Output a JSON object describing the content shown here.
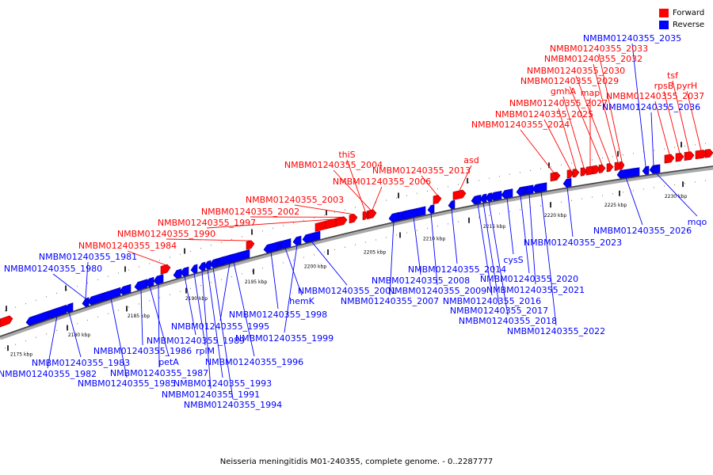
{
  "caption": "Neisseria meningitidis M01-240355, complete genome. - 0..2287777",
  "legend": [
    {
      "label": "Forward",
      "color": "#ff0000"
    },
    {
      "label": "Reverse",
      "color": "#0000ff"
    }
  ],
  "colors": {
    "forward": "#ff0000",
    "reverse": "#0000ff",
    "backbone": "#000000"
  },
  "scale_ticks": [
    "2175 kbp",
    "2180 kbp",
    "2185 kbp",
    "2190 kbp",
    "2195 kbp",
    "2200 kbp",
    "2205 kbp",
    "2210 kbp",
    "2215 kbp",
    "2220 kbp",
    "2225 kbp",
    "2230 kbp"
  ],
  "genes": [
    {
      "label": "NMBM01240355_1980",
      "strand": "reverse"
    },
    {
      "label": "NMBM01240355_1981",
      "strand": "reverse"
    },
    {
      "label": "NMBM01240355_1982",
      "strand": "reverse"
    },
    {
      "label": "NMBM01240355_1983",
      "strand": "reverse"
    },
    {
      "label": "NMBM01240355_1984",
      "strand": "forward"
    },
    {
      "label": "NMBM01240355_1985",
      "strand": "reverse"
    },
    {
      "label": "NMBM01240355_1986",
      "strand": "reverse"
    },
    {
      "label": "petA",
      "strand": "reverse"
    },
    {
      "label": "NMBM01240355_1987",
      "strand": "reverse"
    },
    {
      "label": "NMBM01240355_1989",
      "strand": "reverse"
    },
    {
      "label": "rplM",
      "strand": "reverse"
    },
    {
      "label": "NMBM01240355_1990",
      "strand": "forward"
    },
    {
      "label": "NMBM01240355_1991",
      "strand": "reverse"
    },
    {
      "label": "NMBM01240355_1993",
      "strand": "reverse"
    },
    {
      "label": "NMBM01240355_1994",
      "strand": "reverse"
    },
    {
      "label": "NMBM01240355_1995",
      "strand": "reverse"
    },
    {
      "label": "NMBM01240355_1996",
      "strand": "reverse"
    },
    {
      "label": "NMBM01240355_1997",
      "strand": "forward"
    },
    {
      "label": "NMBM01240355_1998",
      "strand": "reverse"
    },
    {
      "label": "hemK",
      "strand": "reverse"
    },
    {
      "label": "NMBM01240355_1999",
      "strand": "reverse"
    },
    {
      "label": "NMBM01240355_2001",
      "strand": "reverse"
    },
    {
      "label": "NMBM01240355_2002",
      "strand": "forward"
    },
    {
      "label": "NMBM01240355_2003",
      "strand": "forward"
    },
    {
      "label": "thiS",
      "strand": "forward"
    },
    {
      "label": "NMBM01240355_2004",
      "strand": "forward"
    },
    {
      "label": "NMBM01240355_2006",
      "strand": "forward"
    },
    {
      "label": "NMBM01240355_2007",
      "strand": "reverse"
    },
    {
      "label": "NMBM01240355_2008",
      "strand": "reverse"
    },
    {
      "label": "NMBM01240355_2009",
      "strand": "reverse"
    },
    {
      "label": "NMBM01240355_2013",
      "strand": "forward"
    },
    {
      "label": "asd",
      "strand": "forward"
    },
    {
      "label": "NMBM01240355_2014",
      "strand": "reverse"
    },
    {
      "label": "NMBM01240355_2016",
      "strand": "reverse"
    },
    {
      "label": "NMBM01240355_2017",
      "strand": "reverse"
    },
    {
      "label": "NMBM01240355_2018",
      "strand": "reverse"
    },
    {
      "label": "cysS",
      "strand": "reverse"
    },
    {
      "label": "NMBM01240355_2020",
      "strand": "reverse"
    },
    {
      "label": "NMBM01240355_2021",
      "strand": "reverse"
    },
    {
      "label": "NMBM01240355_2022",
      "strand": "reverse"
    },
    {
      "label": "NMBM01240355_2023",
      "strand": "reverse"
    },
    {
      "label": "NMBM01240355_2024",
      "strand": "forward"
    },
    {
      "label": "NMBM01240355_2025",
      "strand": "forward"
    },
    {
      "label": "NMBM01240355_2027",
      "strand": "forward"
    },
    {
      "label": "gmhA",
      "strand": "forward"
    },
    {
      "label": "map",
      "strand": "forward"
    },
    {
      "label": "NMBM01240355_2029",
      "strand": "forward"
    },
    {
      "label": "NMBM01240355_2030",
      "strand": "forward"
    },
    {
      "label": "NMBM01240355_2032",
      "strand": "forward"
    },
    {
      "label": "NMBM01240355_2033",
      "strand": "forward"
    },
    {
      "label": "NMBM01240355_2026",
      "strand": "reverse"
    },
    {
      "label": "NMBM01240355_2035",
      "strand": "reverse"
    },
    {
      "label": "NMBM01240355_2036",
      "strand": "reverse"
    },
    {
      "label": "NMBM01240355_2037",
      "strand": "forward"
    },
    {
      "label": "rpsB",
      "strand": "forward"
    },
    {
      "label": "tsf",
      "strand": "forward"
    },
    {
      "label": "pyrH",
      "strand": "forward"
    },
    {
      "label": "mqo",
      "strand": "reverse"
    }
  ]
}
